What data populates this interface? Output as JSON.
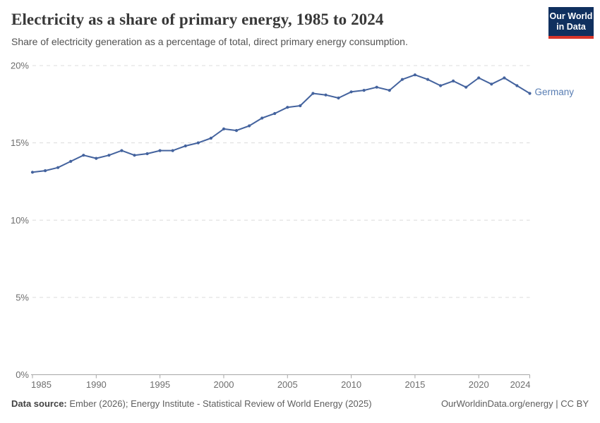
{
  "header": {
    "title": "Electricity as a share of primary energy, 1985 to 2024",
    "subtitle": "Share of electricity generation as a percentage of total, direct primary energy consumption.",
    "logo": {
      "line1": "Our World",
      "line2": "in Data"
    }
  },
  "chart_data": {
    "type": "line",
    "title": "Electricity as a share of primary energy, 1985 to 2024",
    "xlabel": "",
    "ylabel": "",
    "xlim": [
      1985,
      2024
    ],
    "ylim": [
      0,
      20
    ],
    "grid": "horizontal-dashed",
    "legend_position": "end-of-line-label",
    "x_ticks": [
      {
        "value": 1985,
        "label": "1985"
      },
      {
        "value": 1990,
        "label": "1990"
      },
      {
        "value": 1995,
        "label": "1995"
      },
      {
        "value": 2000,
        "label": "2000"
      },
      {
        "value": 2005,
        "label": "2005"
      },
      {
        "value": 2010,
        "label": "2010"
      },
      {
        "value": 2015,
        "label": "2015"
      },
      {
        "value": 2020,
        "label": "2020"
      },
      {
        "value": 2024,
        "label": "2024"
      }
    ],
    "y_ticks": [
      {
        "value": 0,
        "label": "0%"
      },
      {
        "value": 5,
        "label": "5%"
      },
      {
        "value": 10,
        "label": "10%"
      },
      {
        "value": 15,
        "label": "15%"
      },
      {
        "value": 20,
        "label": "20%"
      }
    ],
    "series": [
      {
        "name": "Germany",
        "color": "#44639e",
        "label_color": "#587db3",
        "x": [
          1985,
          1986,
          1987,
          1988,
          1989,
          1990,
          1991,
          1992,
          1993,
          1994,
          1995,
          1996,
          1997,
          1998,
          1999,
          2000,
          2001,
          2002,
          2003,
          2004,
          2005,
          2006,
          2007,
          2008,
          2009,
          2010,
          2011,
          2012,
          2013,
          2014,
          2015,
          2016,
          2017,
          2018,
          2019,
          2020,
          2021,
          2022,
          2023,
          2024
        ],
        "values": [
          13.1,
          13.2,
          13.4,
          13.8,
          14.2,
          14.0,
          14.2,
          14.5,
          14.2,
          14.3,
          14.5,
          14.5,
          14.8,
          15.0,
          15.3,
          15.9,
          15.8,
          16.1,
          16.6,
          16.9,
          17.3,
          17.4,
          18.2,
          18.1,
          17.9,
          18.3,
          18.4,
          18.6,
          18.4,
          19.1,
          19.4,
          19.1,
          18.7,
          19.0,
          18.6,
          19.2,
          18.8,
          19.2,
          18.7,
          18.2
        ]
      }
    ]
  },
  "footer": {
    "source_label": "Data source:",
    "source_text": " Ember (2026); Energy Institute - Statistical Review of World Energy (2025)",
    "right_text": "OurWorldinData.org/energy | CC BY"
  },
  "colors": {
    "brand_navy": "#10305f",
    "brand_red": "#d8352a",
    "series_blue": "#44639e",
    "grid_gray": "#dcdcdc",
    "axis_gray": "#a6a6a6",
    "tick_text_gray": "#6e6e6e"
  }
}
